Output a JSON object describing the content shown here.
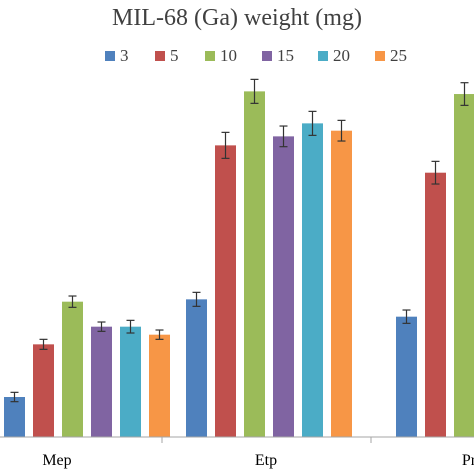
{
  "chart_data": {
    "type": "bar",
    "title": "MIL-68 (Ga) weight (mg)",
    "xlabel": "",
    "ylabel": "",
    "ylim": [
      0,
      100
    ],
    "legend_position": "top",
    "grid": false,
    "categories": [
      "Mep",
      "Etp",
      "Pr"
    ],
    "series": [
      {
        "name": "3",
        "color": "#4f81bd",
        "values": [
          12,
          41.3,
          36.1
        ],
        "errors": [
          1.4,
          2.1,
          2.0
        ]
      },
      {
        "name": "5",
        "color": "#c0504d",
        "values": [
          27.8,
          87.5,
          79.3
        ],
        "errors": [
          1.5,
          3.9,
          3.4
        ]
      },
      {
        "name": "10",
        "color": "#9bbb59",
        "values": [
          40.6,
          103.7,
          102.9
        ],
        "errors": [
          1.7,
          3.6,
          3.4
        ]
      },
      {
        "name": "15",
        "color": "#8064a2",
        "values": [
          33.1,
          90.2,
          null
        ],
        "errors": [
          1.4,
          3.1,
          null
        ]
      },
      {
        "name": "20",
        "color": "#4bacc6",
        "values": [
          33.1,
          94.1,
          null
        ],
        "errors": [
          1.9,
          3.6,
          null
        ]
      },
      {
        "name": "25",
        "color": "#f79646",
        "values": [
          30.7,
          91.9,
          null
        ],
        "errors": [
          1.4,
          3.1,
          null
        ]
      }
    ]
  }
}
